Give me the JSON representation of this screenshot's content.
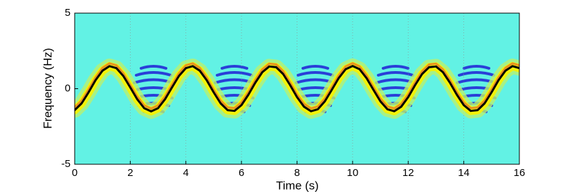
{
  "chart_data": {
    "type": "line",
    "x_label": "Time (s)",
    "y_label": "Frequency (Hz)",
    "x": [
      0,
      0.25,
      0.5,
      0.75,
      1,
      1.25,
      1.5,
      1.75,
      2,
      2.25,
      2.5,
      2.75,
      3,
      3.25,
      3.5,
      3.75,
      4,
      4.25,
      4.5,
      4.75,
      5,
      5.25,
      5.5,
      5.75,
      6,
      6.25,
      6.5,
      6.75,
      7,
      7.25,
      7.5,
      7.75,
      8,
      8.25,
      8.5,
      8.75,
      9,
      9.25,
      9.5,
      9.75,
      10,
      10.25,
      10.5,
      10.75,
      11,
      11.25,
      11.5,
      11.75,
      12,
      12.25,
      12.5,
      12.75,
      13,
      13.25,
      13.5,
      13.75,
      14,
      14.25,
      14.5,
      14.75,
      15,
      15.25,
      15.5,
      15.75,
      16
    ],
    "series": [
      {
        "color": "#000000",
        "values": [
          -1.42,
          -0.97,
          -0.24,
          0.56,
          1.19,
          1.49,
          1.36,
          0.84,
          0.08,
          -0.7,
          -1.29,
          -1.5,
          -1.29,
          -0.7,
          0.08,
          0.84,
          1.36,
          1.49,
          1.19,
          0.56,
          -0.24,
          -0.97,
          -1.42,
          -1.47,
          -1.09,
          -0.4,
          0.4,
          1.09,
          1.47,
          1.42,
          0.97,
          0.24,
          -0.56,
          -1.19,
          -1.49,
          -1.36,
          -0.84,
          -0.08,
          0.7,
          1.29,
          1.5,
          1.29,
          0.7,
          -0.08,
          -0.84,
          -1.36,
          -1.49,
          -1.19,
          -0.56,
          0.24,
          0.97,
          1.42,
          1.47,
          1.09,
          0.4,
          -0.4,
          -1.09,
          -1.47,
          -1.42,
          -0.97,
          -0.24,
          0.56,
          1.19,
          1.49,
          1.36
        ]
      }
    ],
    "xlim": [
      0,
      16
    ],
    "xticks": [
      0,
      2,
      4,
      6,
      8,
      10,
      12,
      14,
      16
    ],
    "ylim": [
      -5,
      5
    ],
    "yticks": [
      -5,
      0,
      5
    ],
    "grid": true
  }
}
